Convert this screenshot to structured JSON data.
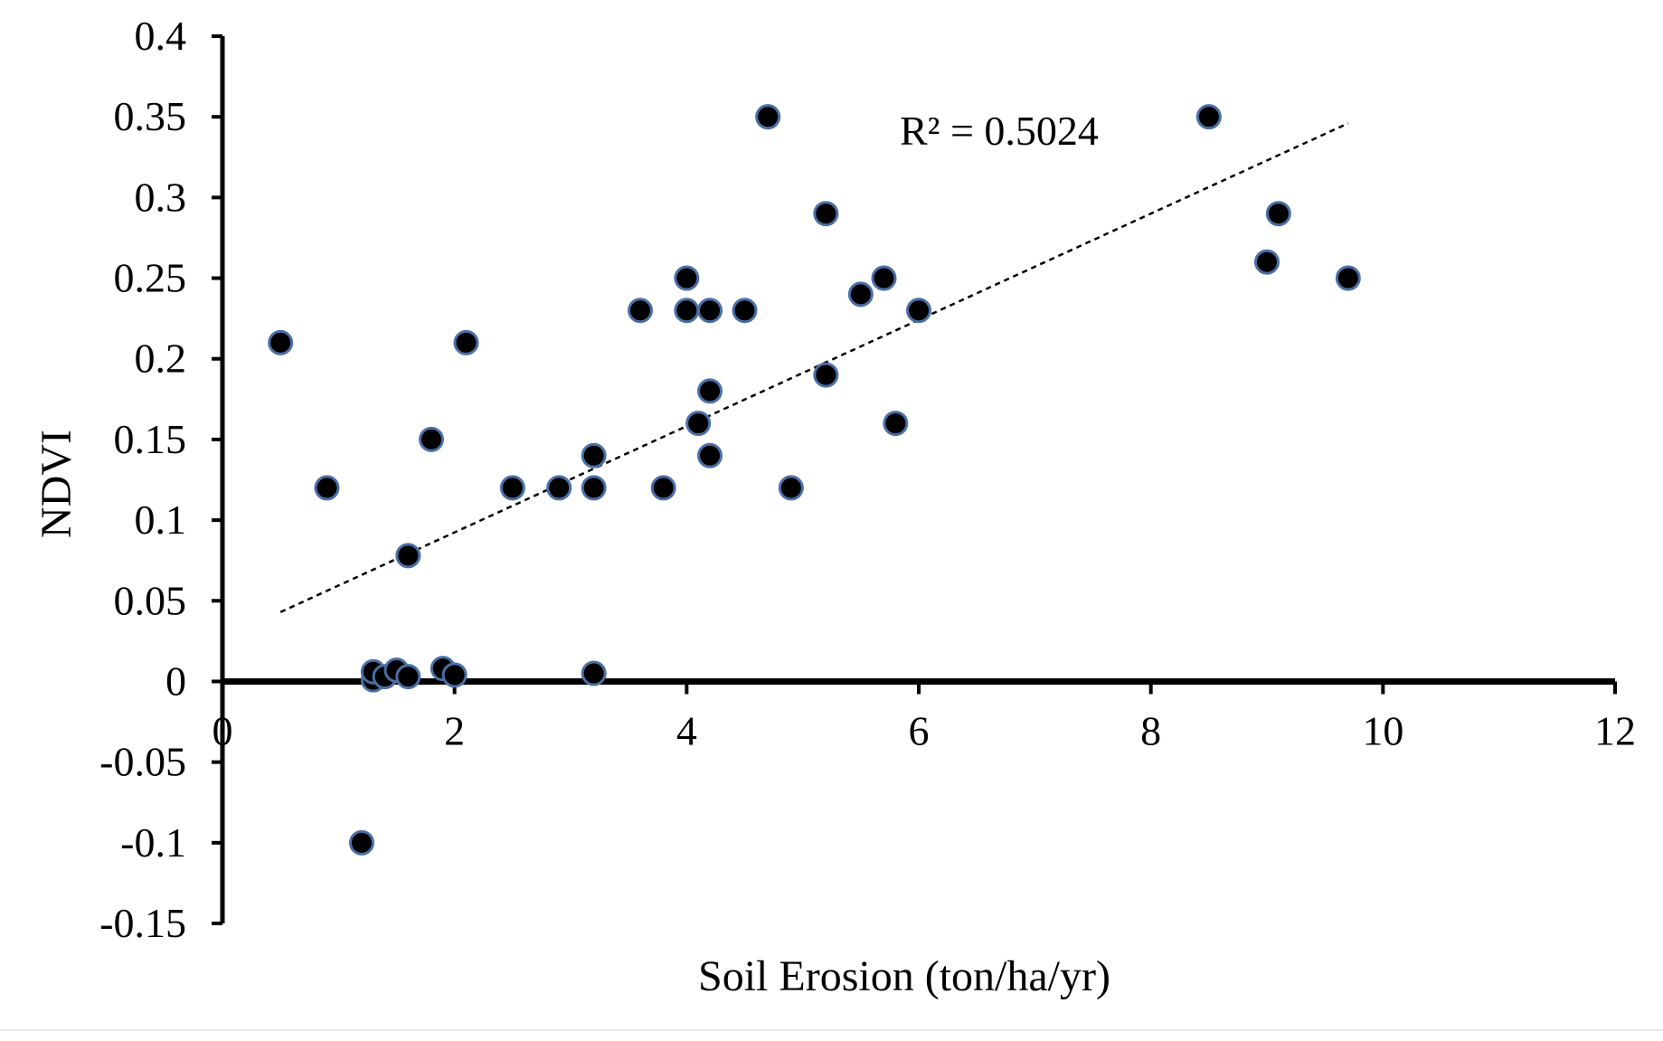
{
  "chart_data": {
    "type": "scatter",
    "title": "",
    "xlabel": "Soil Erosion  (ton/ha/yr)",
    "ylabel": "NDVI",
    "xlim": [
      0,
      12
    ],
    "ylim": [
      -0.15,
      0.4
    ],
    "x_ticks": [
      0,
      2,
      4,
      6,
      8,
      10,
      12
    ],
    "y_ticks": [
      0.4,
      0.35,
      0.3,
      0.25,
      0.2,
      0.15,
      0.1,
      0.05,
      0,
      -0.05,
      -0.1,
      -0.15
    ],
    "x_tick_labels": [
      "0",
      "2",
      "4",
      "6",
      "8",
      "10",
      "12"
    ],
    "y_tick_labels": [
      "0.4",
      "0.35",
      "0.3",
      "0.25",
      "0.2",
      "0.15",
      "0.1",
      "0.05",
      "0",
      "-0.05",
      "-0.1",
      "-0.15"
    ],
    "grid": false,
    "legend": "none",
    "marker_color": "#000000",
    "marker_edge_color": "#4a6fa5",
    "trendline": {
      "type": "linear",
      "x_range": [
        0.5,
        9.7
      ],
      "y_range": [
        0.043,
        0.346
      ],
      "style": "dotted",
      "color": "#000000"
    },
    "annotation": "R² = 0.5024",
    "points": [
      {
        "x": 0.5,
        "y": 0.21
      },
      {
        "x": 0.9,
        "y": 0.12
      },
      {
        "x": 1.2,
        "y": -0.1
      },
      {
        "x": 1.3,
        "y": 0.001
      },
      {
        "x": 1.3,
        "y": 0.006
      },
      {
        "x": 1.4,
        "y": 0.003
      },
      {
        "x": 1.5,
        "y": 0.007
      },
      {
        "x": 1.6,
        "y": 0.003
      },
      {
        "x": 1.6,
        "y": 0.078
      },
      {
        "x": 1.8,
        "y": 0.15
      },
      {
        "x": 1.9,
        "y": 0.008
      },
      {
        "x": 2.0,
        "y": 0.004
      },
      {
        "x": 2.1,
        "y": 0.21
      },
      {
        "x": 2.5,
        "y": 0.12
      },
      {
        "x": 2.9,
        "y": 0.12
      },
      {
        "x": 3.2,
        "y": 0.005
      },
      {
        "x": 3.2,
        "y": 0.12
      },
      {
        "x": 3.2,
        "y": 0.14
      },
      {
        "x": 3.6,
        "y": 0.23
      },
      {
        "x": 3.8,
        "y": 0.12
      },
      {
        "x": 4.0,
        "y": 0.25
      },
      {
        "x": 4.0,
        "y": 0.23
      },
      {
        "x": 4.1,
        "y": 0.16
      },
      {
        "x": 4.2,
        "y": 0.23
      },
      {
        "x": 4.2,
        "y": 0.18
      },
      {
        "x": 4.2,
        "y": 0.14
      },
      {
        "x": 4.5,
        "y": 0.23
      },
      {
        "x": 4.7,
        "y": 0.35
      },
      {
        "x": 4.9,
        "y": 0.12
      },
      {
        "x": 5.2,
        "y": 0.29
      },
      {
        "x": 5.2,
        "y": 0.19
      },
      {
        "x": 5.5,
        "y": 0.24
      },
      {
        "x": 5.7,
        "y": 0.25
      },
      {
        "x": 5.8,
        "y": 0.16
      },
      {
        "x": 6.0,
        "y": 0.23
      },
      {
        "x": 8.5,
        "y": 0.35
      },
      {
        "x": 9.0,
        "y": 0.26
      },
      {
        "x": 9.1,
        "y": 0.29
      },
      {
        "x": 9.7,
        "y": 0.25
      }
    ]
  }
}
